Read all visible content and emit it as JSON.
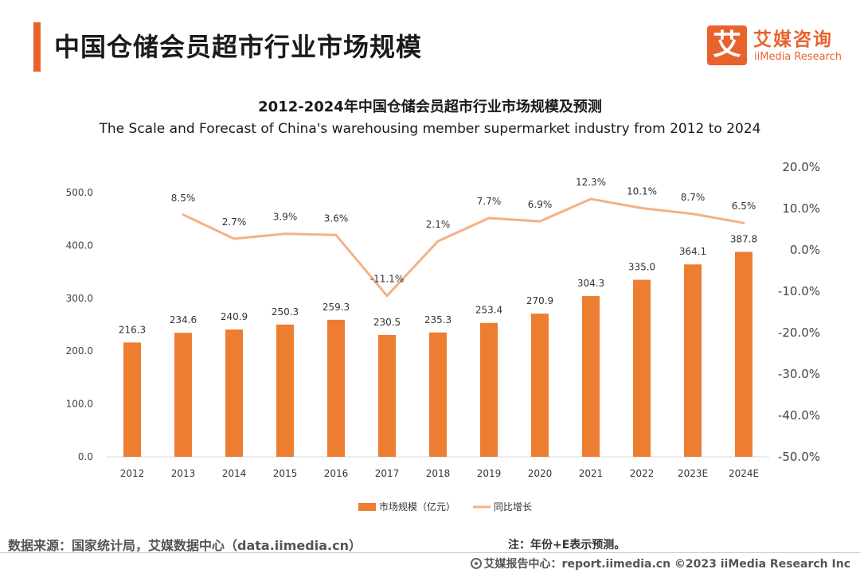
{
  "header": {
    "title": "中国仓储会员超市行业市场规模"
  },
  "logo": {
    "glyph": "艾",
    "name_cn": "艾媒咨询",
    "name_en": "iiMedia Research"
  },
  "chart_titles": {
    "cn": "2012-2024年中国仓储会员超市行业市场规模及预测",
    "en": "The Scale and Forecast of China's warehousing member supermarket industry from 2012 to 2024"
  },
  "colors": {
    "bar": "#ed7d31",
    "line": "#f4b183",
    "accent": "#e8622c"
  },
  "chart_data": {
    "type": "bar",
    "categories": [
      "2012",
      "2013",
      "2014",
      "2015",
      "2016",
      "2017",
      "2018",
      "2019",
      "2020",
      "2021",
      "2022",
      "2023E",
      "2024E"
    ],
    "series": [
      {
        "name": "市场规模（亿元）",
        "type": "bar",
        "axis": "left",
        "values": [
          216.3,
          234.6,
          240.9,
          250.3,
          259.3,
          230.5,
          235.3,
          253.4,
          270.9,
          304.3,
          335.0,
          364.1,
          387.8
        ],
        "labels": [
          "216.3",
          "234.6",
          "240.9",
          "250.3",
          "259.3",
          "230.5",
          "235.3",
          "253.4",
          "270.9",
          "304.3",
          "335.0",
          "364.1",
          "387.8"
        ]
      },
      {
        "name": "同比增长",
        "type": "line",
        "axis": "right",
        "values": [
          null,
          8.5,
          2.7,
          3.9,
          3.6,
          -11.1,
          2.1,
          7.7,
          6.9,
          12.3,
          10.1,
          8.7,
          6.5
        ],
        "labels": [
          "",
          "8.5%",
          "2.7%",
          "3.9%",
          "3.6%",
          "-11.1%",
          "2.1%",
          "7.7%",
          "6.9%",
          "12.3%",
          "10.1%",
          "8.7%",
          "6.5%"
        ]
      }
    ],
    "y_left": {
      "ylim": [
        0,
        500
      ],
      "ticks": [
        0,
        100,
        200,
        300,
        400,
        500
      ],
      "tick_labels": [
        "0.0",
        "100.0",
        "200.0",
        "300.0",
        "400.0",
        "500.0"
      ]
    },
    "y_right": {
      "ylim": [
        -50,
        20
      ],
      "ticks": [
        -50,
        -40,
        -30,
        -20,
        -10,
        0,
        10,
        20
      ],
      "tick_labels": [
        "-50.0%",
        "-40.0%",
        "-30.0%",
        "-20.0%",
        "-10.0%",
        "0.0%",
        "10.0%",
        "20.0%"
      ]
    },
    "grid": false,
    "legend_position": "bottom"
  },
  "footer": {
    "source": "数据来源：国家统计局，艾媒数据中心（data.iimedia.cn）",
    "note": "注：年份+E表示预测。",
    "copyright": "艾媒报告中心：report.iimedia.cn ©2023  iiMedia Research  Inc"
  }
}
